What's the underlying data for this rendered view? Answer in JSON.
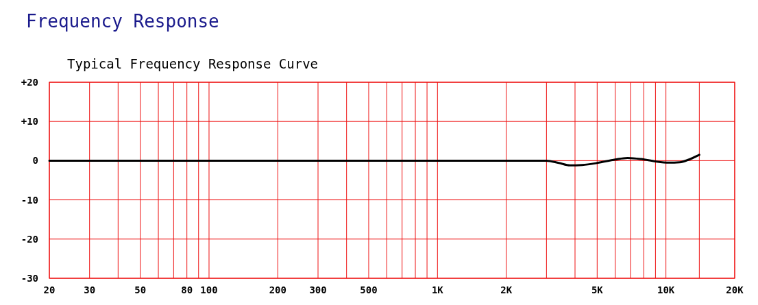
{
  "chart_data": {
    "type": "line",
    "title": "Frequency Response",
    "subtitle": "Typical Frequency Response Curve",
    "log": "x",
    "grid": true,
    "marker": "none",
    "line_style": "solid",
    "xlim": [
      20,
      20000
    ],
    "ylim": [
      -30,
      20
    ],
    "xticks": [
      20,
      30,
      {
        "value": 40,
        "label": null
      },
      50,
      {
        "value": 60,
        "label": null
      },
      {
        "value": 70,
        "label": null
      },
      80,
      {
        "value": 90,
        "label": null
      },
      100,
      200,
      300,
      {
        "value": 400,
        "label": null
      },
      500,
      {
        "value": 600,
        "label": null
      },
      {
        "value": 700,
        "label": null
      },
      {
        "value": 800,
        "label": null
      },
      {
        "value": 900,
        "label": null
      },
      {
        "value": 1000,
        "label": "1K"
      },
      {
        "value": 2000,
        "label": "2K"
      },
      {
        "value": 3000,
        "label": null
      },
      {
        "value": 4000,
        "label": null
      },
      {
        "value": 5000,
        "label": "5K"
      },
      {
        "value": 6000,
        "label": null
      },
      {
        "value": 7000,
        "label": null
      },
      {
        "value": 8000,
        "label": null
      },
      {
        "value": 9000,
        "label": null
      },
      {
        "value": 10000,
        "label": "10K"
      },
      {
        "value": 14000,
        "label": null
      },
      {
        "value": 20000,
        "label": "20K"
      }
    ],
    "yticks": [
      {
        "value": 20,
        "label": "+20"
      },
      {
        "value": 10,
        "label": "+10"
      },
      0,
      -10,
      -20,
      -30
    ],
    "series": [
      {
        "color": "#000000",
        "x": [
          20,
          3000,
          3400,
          3800,
          4300,
          5000,
          6000,
          6800,
          7800,
          9000,
          10300,
          11500,
          12500,
          14000
        ],
        "values": [
          0,
          0,
          -0.6,
          -1.2,
          -1.1,
          -0.6,
          0.3,
          0.7,
          0.4,
          -0.2,
          -0.5,
          -0.4,
          0.2,
          1.5
        ]
      }
    ]
  }
}
